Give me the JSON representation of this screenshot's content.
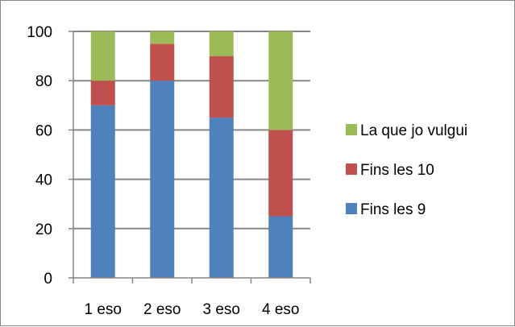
{
  "chart_data": {
    "type": "bar",
    "stacked": true,
    "categories": [
      "1 eso",
      "2 eso",
      "3 eso",
      "4 eso"
    ],
    "series": [
      {
        "name": "Fins les 9",
        "color": "#4f81bd",
        "values": [
          70,
          80,
          65,
          25
        ]
      },
      {
        "name": "Fins les 10",
        "color": "#c0504d",
        "values": [
          10,
          15,
          25,
          35
        ]
      },
      {
        "name": "La que jo vulgui",
        "color": "#9bbb59",
        "values": [
          20,
          5,
          10,
          40
        ]
      }
    ],
    "yticks": [
      "0",
      "20",
      "40",
      "60",
      "80",
      "100"
    ],
    "ylim": [
      0,
      100
    ],
    "grid": true,
    "legend_position": "right",
    "title": "",
    "xlabel": "",
    "ylabel": ""
  }
}
